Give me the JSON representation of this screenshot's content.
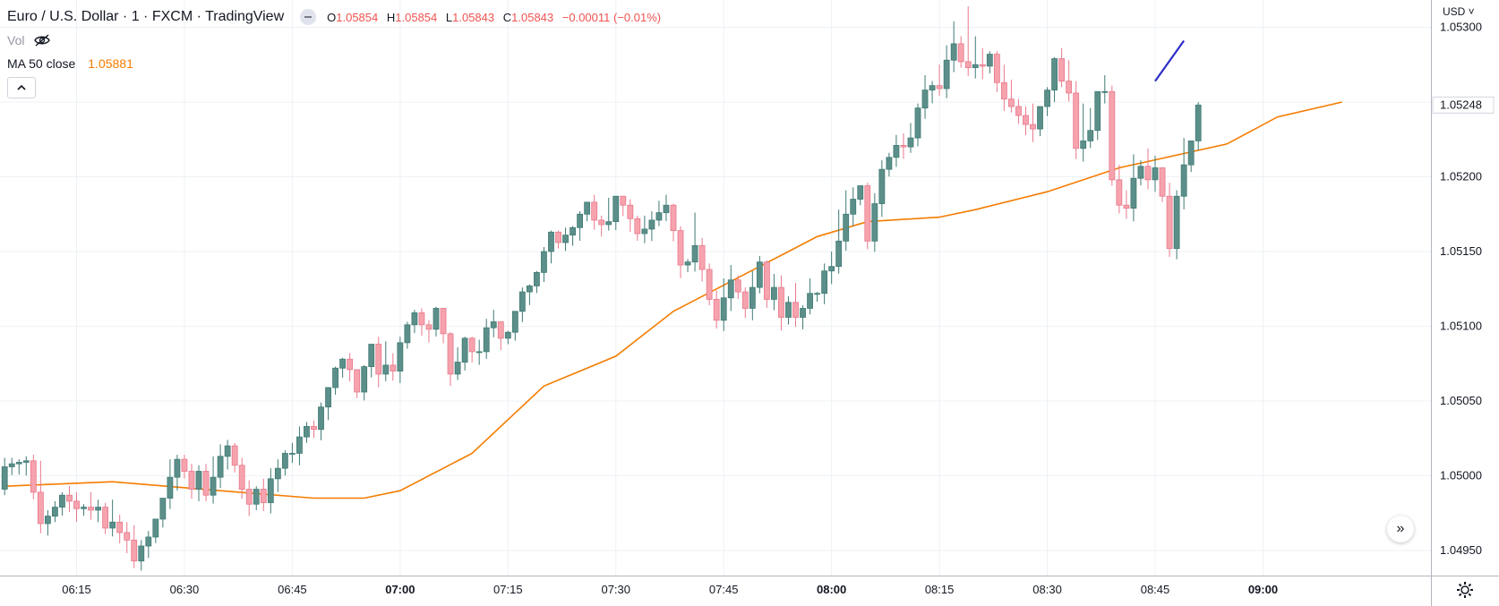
{
  "legend": {
    "title": "Euro / U.S. Dollar · 1 · FXCM · TradingView",
    "open_label": "O",
    "open": "1.05854",
    "high_label": "H",
    "high": "1.05854",
    "low_label": "L",
    "low": "1.05843",
    "close_label": "C",
    "close": "1.05843",
    "change": "−0.00011 (−0.01%)",
    "vol_label": "Vol",
    "ma_label": "MA 50 close",
    "ma_value": "1.05881"
  },
  "price_axis": {
    "currency": "USD",
    "current_price_label": "1.05248"
  },
  "colors": {
    "up": "#5c8f8a",
    "down": "#f6a3ae",
    "ma": "#f57c00",
    "drawing": "#2c2cc7",
    "grid": "#eef1f5"
  },
  "chart_data": {
    "type": "candlestick",
    "title": "Euro / U.S. Dollar · 1 · FXCM · TradingView",
    "xlabel": "",
    "ylabel": "",
    "ylim": [
      1.0494,
      1.0532
    ],
    "yticks": [
      "1.05300",
      "1.05200",
      "1.05150",
      "1.05100",
      "1.05050",
      "1.05000",
      "1.04950"
    ],
    "ytick_values": [
      1.053,
      1.052,
      1.0515,
      1.051,
      1.0505,
      1.05,
      1.0495
    ],
    "xticks": [
      {
        "label": "06:15",
        "minute": 15,
        "bold": false
      },
      {
        "label": "06:30",
        "minute": 30,
        "bold": false
      },
      {
        "label": "06:45",
        "minute": 45,
        "bold": false
      },
      {
        "label": "07:00",
        "minute": 60,
        "bold": true
      },
      {
        "label": "07:15",
        "minute": 75,
        "bold": false
      },
      {
        "label": "07:30",
        "minute": 90,
        "bold": false
      },
      {
        "label": "07:45",
        "minute": 105,
        "bold": false
      },
      {
        "label": "08:00",
        "minute": 120,
        "bold": true
      },
      {
        "label": "08:15",
        "minute": 135,
        "bold": false
      },
      {
        "label": "08:30",
        "minute": 150,
        "bold": false
      },
      {
        "label": "08:45",
        "minute": 165,
        "bold": false
      },
      {
        "label": "09:00",
        "minute": 180,
        "bold": true
      }
    ],
    "candle_start_minute": 5,
    "ma_key_points": [
      [
        5,
        1.04993
      ],
      [
        20,
        1.04996
      ],
      [
        35,
        1.0499
      ],
      [
        48,
        1.04985
      ],
      [
        55,
        1.04985
      ],
      [
        60,
        1.0499
      ],
      [
        70,
        1.05015
      ],
      [
        80,
        1.0506
      ],
      [
        90,
        1.0508
      ],
      [
        98,
        1.0511
      ],
      [
        110,
        1.0514
      ],
      [
        118,
        1.0516
      ],
      [
        125,
        1.0517
      ],
      [
        135,
        1.05173
      ],
      [
        140,
        1.05178
      ],
      [
        150,
        1.0519
      ],
      [
        160,
        1.05206
      ],
      [
        175,
        1.05222
      ],
      [
        182,
        1.0524
      ],
      [
        191,
        1.0525
      ]
    ],
    "drawing": {
      "type": "trend-line",
      "from": [
        165,
        1.05264
      ],
      "to": [
        169,
        1.05291
      ]
    },
    "series": [
      {
        "name": "EURUSD",
        "open": [
          1.04991,
          1.05006,
          1.05008,
          1.05009,
          1.0501,
          1.04989,
          1.04968,
          1.04973,
          1.04979,
          1.04987,
          1.04983,
          1.04978,
          1.04979,
          1.04977,
          1.04979,
          1.04965,
          1.04969,
          1.04962,
          1.04957,
          1.04943,
          1.04953,
          1.04959,
          1.04971,
          1.04985,
          1.04999,
          1.05011,
          1.05003,
          1.04991,
          1.05003,
          1.04987,
          1.04999,
          1.05013,
          1.0502,
          1.05007,
          1.04991,
          1.04981,
          1.04991,
          1.04982,
          1.04998,
          1.05005,
          1.05015,
          1.05015,
          1.05026,
          1.05033,
          1.05031,
          1.05046,
          1.05059,
          1.05072,
          1.05078,
          1.05071,
          1.05056,
          1.05073,
          1.05088,
          1.05068,
          1.05074,
          1.0507,
          1.05089,
          1.05101,
          1.05109,
          1.05101,
          1.05098,
          1.05112,
          1.05095,
          1.05068,
          1.05076,
          1.05092,
          1.05083,
          1.05083,
          1.05099,
          1.05103,
          1.05092,
          1.05096,
          1.0511,
          1.05123,
          1.05127,
          1.05136,
          1.0515,
          1.05163,
          1.05156,
          1.05161,
          1.05166,
          1.05175,
          1.05183,
          1.05171,
          1.05168,
          1.0517,
          1.05187,
          1.05181,
          1.05172,
          1.05162,
          1.05165,
          1.05171,
          1.05176,
          1.05181,
          1.05164,
          1.05141,
          1.05143,
          1.05154,
          1.05138,
          1.05118,
          1.05104,
          1.05119,
          1.05131,
          1.05123,
          1.05112,
          1.05126,
          1.05143,
          1.05118,
          1.05126,
          1.05106,
          1.05116,
          1.05106,
          1.05112,
          1.05122,
          1.05122,
          1.05137,
          1.0514,
          1.05157,
          1.05175,
          1.05185,
          1.05194,
          1.05157,
          1.05182,
          1.05205,
          1.05213,
          1.05221,
          1.0522,
          1.05226,
          1.05246,
          1.05258,
          1.05261,
          1.05259,
          1.05278,
          1.05289,
          1.05277,
          1.05273,
          1.05275,
          1.05274,
          1.05282,
          1.05263,
          1.05252,
          1.05247,
          1.05241,
          1.05235,
          1.05232,
          1.05247,
          1.05258,
          1.05279,
          1.05264,
          1.05256,
          1.05219,
          1.05224,
          1.05231,
          1.05257,
          1.05257,
          1.05198,
          1.05181,
          1.05179,
          1.05199,
          1.05207,
          1.05198,
          1.05206,
          1.05187,
          1.05152,
          1.05187,
          1.05208,
          1.05224
        ],
        "high": [
          1.05012,
          1.05012,
          1.05011,
          1.05013,
          1.05014,
          1.0501,
          1.04977,
          1.04983,
          1.04989,
          1.04993,
          1.04989,
          1.04981,
          1.04989,
          1.04984,
          1.04982,
          1.04984,
          1.04974,
          1.04969,
          1.04967,
          1.04957,
          1.04963,
          1.04968,
          1.04983,
          1.05011,
          1.05014,
          1.05014,
          1.05008,
          1.05007,
          1.05008,
          1.05013,
          1.05021,
          1.05024,
          1.05022,
          1.05012,
          1.04997,
          1.04993,
          1.04998,
          1.05005,
          1.05011,
          1.05017,
          1.05022,
          1.05033,
          1.05036,
          1.05037,
          1.05049,
          1.05058,
          1.05073,
          1.05079,
          1.05082,
          1.05071,
          1.05074,
          1.05085,
          1.05093,
          1.0509,
          1.05082,
          1.05093,
          1.05103,
          1.05111,
          1.05112,
          1.05104,
          1.05113,
          1.05112,
          1.05096,
          1.05086,
          1.05093,
          1.05093,
          1.05091,
          1.05105,
          1.05111,
          1.05103,
          1.05097,
          1.0511,
          1.05126,
          1.05128,
          1.05137,
          1.05153,
          1.05164,
          1.05164,
          1.05166,
          1.05167,
          1.05177,
          1.05183,
          1.05188,
          1.05174,
          1.05186,
          1.05187,
          1.05186,
          1.05185,
          1.05174,
          1.05174,
          1.05177,
          1.05184,
          1.05188,
          1.05182,
          1.05167,
          1.05145,
          1.05176,
          1.05159,
          1.05142,
          1.05124,
          1.05132,
          1.05141,
          1.05134,
          1.05126,
          1.05137,
          1.05147,
          1.05144,
          1.05135,
          1.05134,
          1.0512,
          1.05129,
          1.05114,
          1.05132,
          1.05123,
          1.05142,
          1.0515,
          1.05178,
          1.05191,
          1.05193,
          1.05191,
          1.05196,
          1.05189,
          1.05211,
          1.05216,
          1.05228,
          1.05229,
          1.05236,
          1.05249,
          1.05268,
          1.05264,
          1.05275,
          1.05288,
          1.05304,
          1.05294,
          1.05314,
          1.05294,
          1.05286,
          1.05284,
          1.05284,
          1.05275,
          1.05265,
          1.05252,
          1.05247,
          1.05249,
          1.05244,
          1.0526,
          1.0528,
          1.05286,
          1.05278,
          1.05264,
          1.05249,
          1.05246,
          1.05257,
          1.05268,
          1.05261,
          1.05208,
          1.05191,
          1.05215,
          1.05211,
          1.05219,
          1.05214,
          1.05203,
          1.05196,
          1.05191,
          1.05226,
          1.05219,
          1.0525
        ]
      }
    ]
  }
}
